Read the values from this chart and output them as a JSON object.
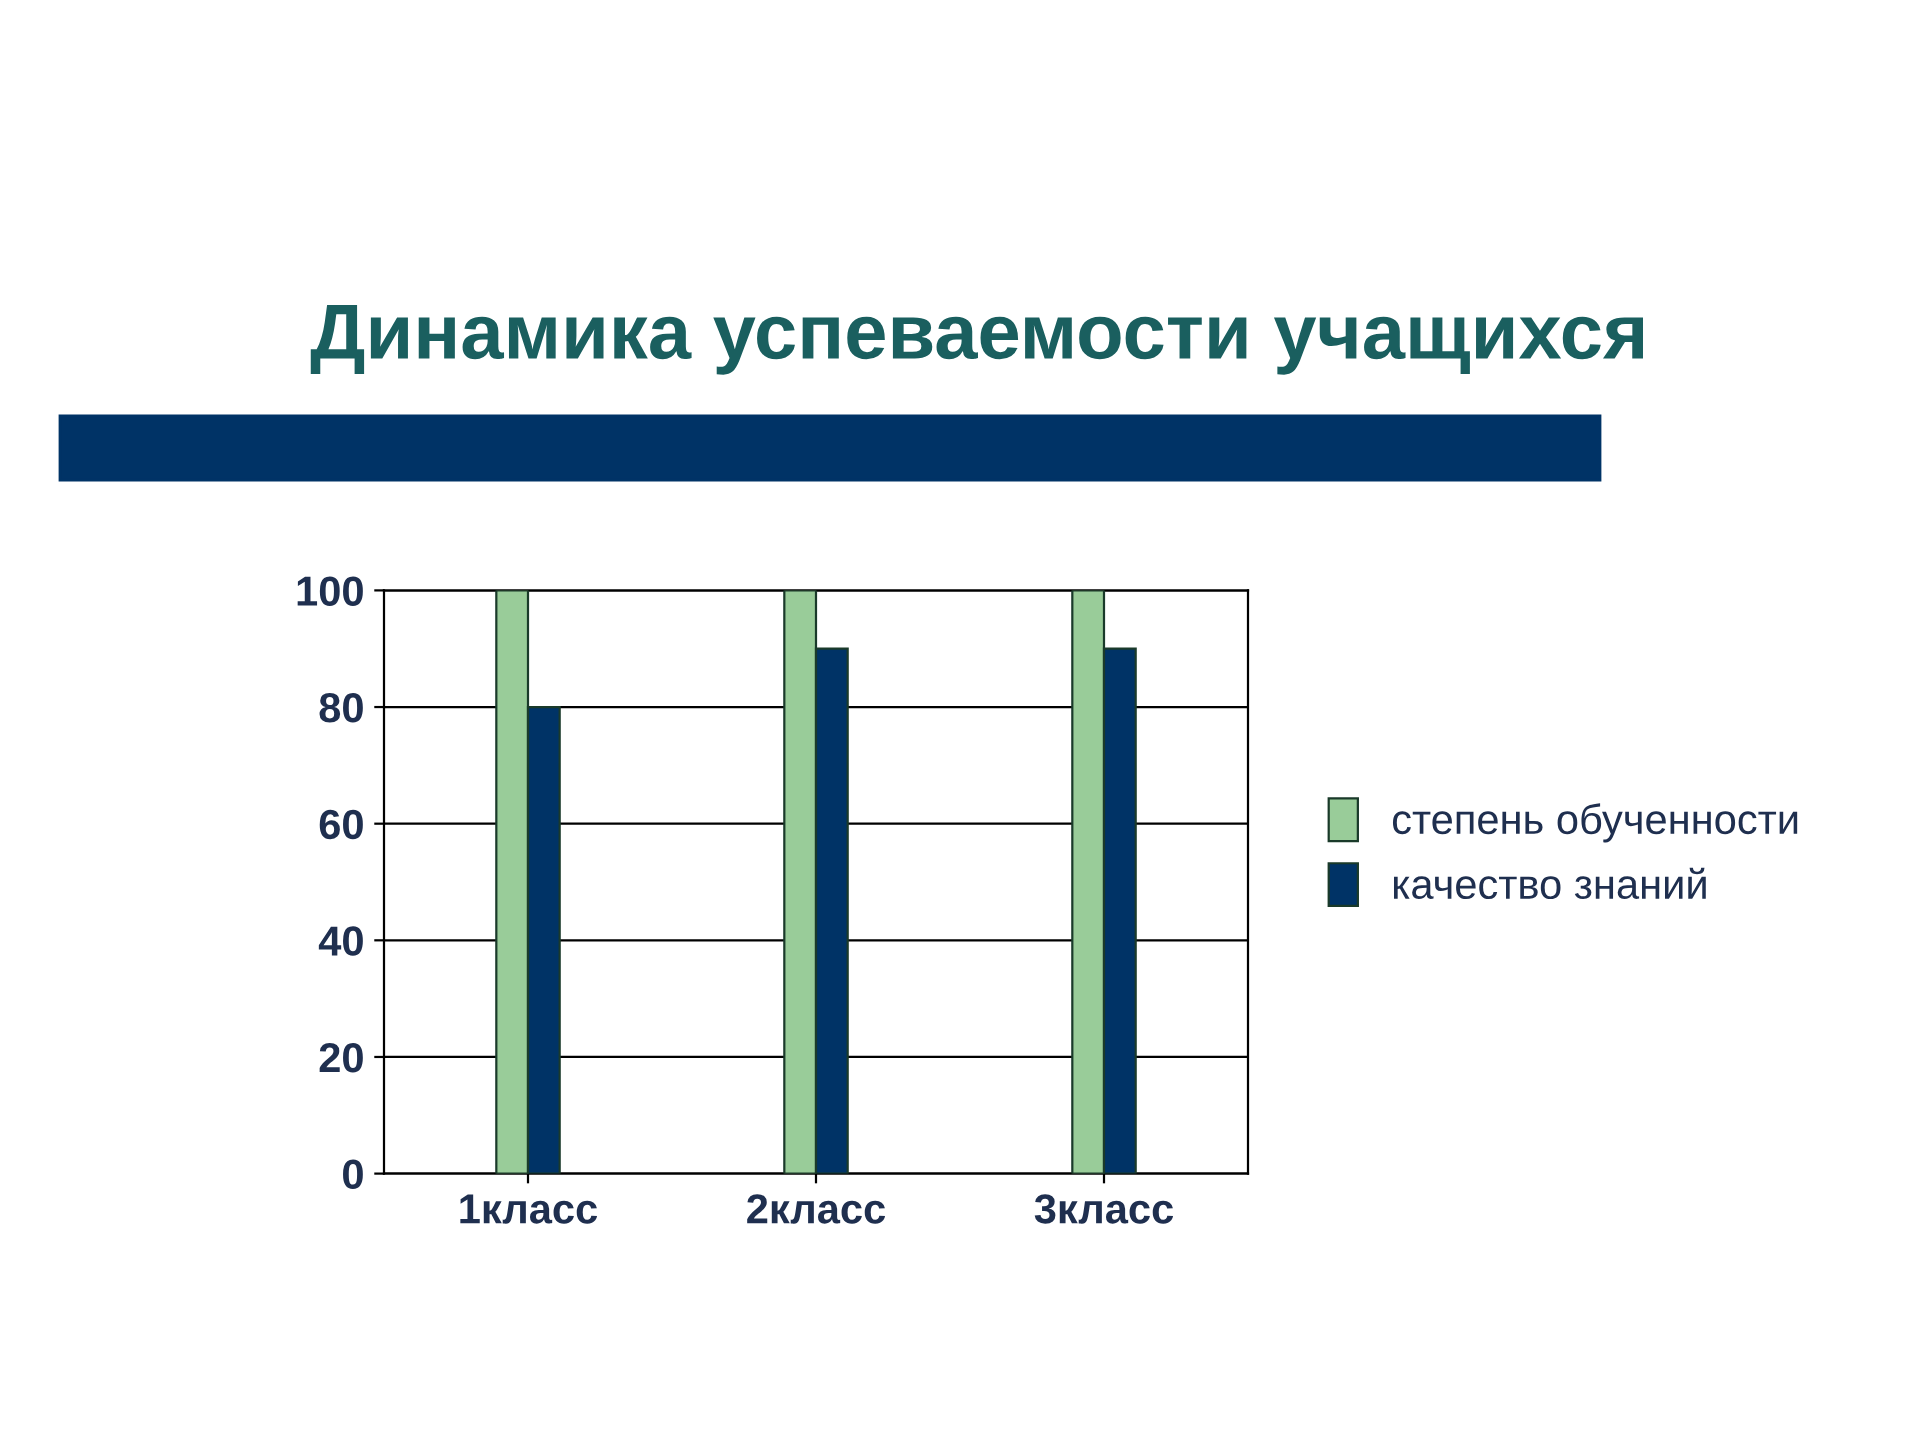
{
  "chart_data": {
    "type": "bar",
    "title": "Динамика успеваемости учащихся",
    "categories": [
      "1класс",
      "2класс",
      "3класс"
    ],
    "series": [
      {
        "name": "степень обученности",
        "color": "#99cc99",
        "values": [
          100,
          100,
          100
        ]
      },
      {
        "name": "качество знаний",
        "color": "#003366",
        "values": [
          80,
          90,
          90
        ]
      }
    ],
    "ylim": [
      0,
      100
    ],
    "yticks": [
      0,
      20,
      40,
      60,
      80,
      100
    ],
    "grid": "y",
    "legend": "right"
  }
}
